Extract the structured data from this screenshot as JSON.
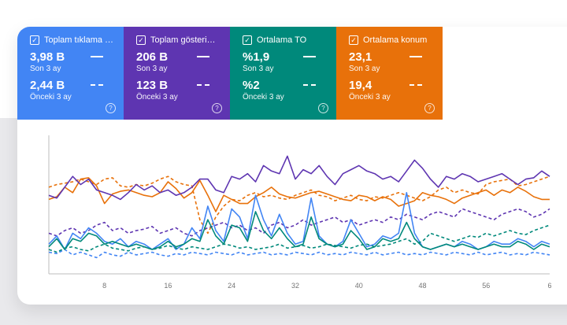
{
  "metrics": [
    {
      "title": "Toplam tıklama s...",
      "current_value": "3,98 B",
      "current_label": "Son 3 ay",
      "previous_value": "2,44 B",
      "previous_label": "Önceki 3 ay",
      "color": "#4285f4"
    },
    {
      "title": "Toplam gösterim ...",
      "current_value": "206 B",
      "current_label": "Son 3 ay",
      "previous_value": "123 B",
      "previous_label": "Önceki 3 ay",
      "color": "#5e35b1"
    },
    {
      "title": "Ortalama TO",
      "current_value": "%1,9",
      "current_label": "Son 3 ay",
      "previous_value": "%2",
      "previous_label": "Önceki 3 ay",
      "color": "#00897b"
    },
    {
      "title": "Ortalama konum",
      "current_value": "23,1",
      "current_label": "Son 3 ay",
      "previous_value": "19,4",
      "previous_label": "Önceki 3 ay",
      "color": "#e8710a"
    }
  ],
  "icons": {
    "check": "checkbox-checked-icon",
    "help": "help-circle-icon",
    "help_glyph": "?",
    "check_glyph": "✓"
  },
  "chart_data": {
    "type": "line",
    "x_ticks": [
      "8",
      "16",
      "24",
      "32",
      "40",
      "48",
      "56",
      "6"
    ],
    "xlim": [
      1,
      64
    ],
    "ylim": [
      0,
      100
    ],
    "grid": false,
    "series": [
      {
        "metric": "Ortalama konum",
        "period": "current",
        "dashed": false,
        "color": "#e8710a",
        "values": [
          55,
          57,
          64,
          60,
          70,
          71,
          65,
          52,
          59,
          61,
          62,
          60,
          58,
          57,
          60,
          68,
          63,
          56,
          60,
          69,
          58,
          46,
          58,
          55,
          52,
          52,
          57,
          60,
          64,
          59,
          57,
          56,
          58,
          60,
          61,
          59,
          57,
          55,
          54,
          58,
          57,
          54,
          57,
          55,
          50,
          52,
          54,
          60,
          58,
          57,
          55,
          52,
          56,
          58,
          60,
          62,
          58,
          62,
          60,
          64,
          61,
          57,
          55,
          55
        ]
      },
      {
        "metric": "Ortalama konum",
        "period": "previous",
        "dashed": true,
        "color": "#e8710a",
        "values": [
          64,
          66,
          67,
          68,
          70,
          68,
          66,
          70,
          71,
          65,
          64,
          66,
          65,
          67,
          70,
          72,
          68,
          66,
          65,
          40,
          30,
          42,
          50,
          55,
          54,
          58,
          60,
          57,
          58,
          56,
          55,
          58,
          60,
          62,
          58,
          57,
          54,
          56,
          58,
          55,
          54,
          57,
          56,
          58,
          60,
          58,
          56,
          54,
          57,
          62,
          64,
          60,
          62,
          60,
          59,
          66,
          68,
          69,
          70,
          65,
          66,
          68,
          70,
          72
        ]
      },
      {
        "metric": "Toplam gösterim",
        "period": "current",
        "dashed": false,
        "color": "#5e35b1",
        "values": [
          58,
          56,
          64,
          72,
          66,
          70,
          62,
          60,
          58,
          55,
          60,
          66,
          62,
          65,
          60,
          62,
          58,
          60,
          64,
          70,
          70,
          62,
          60,
          72,
          70,
          74,
          68,
          80,
          76,
          74,
          87,
          70,
          77,
          74,
          80,
          72,
          66,
          74,
          77,
          80,
          76,
          74,
          70,
          72,
          68,
          76,
          84,
          78,
          70,
          64,
          72,
          70,
          74,
          72,
          68,
          70,
          72,
          74,
          70,
          66,
          70,
          71,
          76,
          72
        ]
      },
      {
        "metric": "Toplam gösterim",
        "period": "previous",
        "dashed": true,
        "color": "#5e35b1",
        "values": [
          30,
          28,
          32,
          34,
          30,
          32,
          36,
          38,
          32,
          34,
          30,
          32,
          33,
          35,
          30,
          32,
          34,
          30,
          28,
          32,
          34,
          36,
          38,
          34,
          36,
          32,
          34,
          30,
          36,
          38,
          34,
          36,
          40,
          36,
          38,
          40,
          42,
          38,
          40,
          36,
          38,
          40,
          38,
          42,
          40,
          44,
          42,
          40,
          44,
          46,
          44,
          42,
          48,
          46,
          44,
          42,
          40,
          44,
          46,
          48,
          46,
          42,
          44,
          48
        ]
      },
      {
        "metric": "Toplam tıklama",
        "period": "current",
        "dashed": false,
        "color": "#4285f4",
        "values": [
          22,
          28,
          18,
          30,
          26,
          34,
          30,
          24,
          22,
          26,
          20,
          24,
          22,
          18,
          22,
          26,
          18,
          22,
          34,
          26,
          50,
          32,
          24,
          48,
          42,
          26,
          58,
          40,
          28,
          44,
          30,
          22,
          24,
          56,
          28,
          22,
          20,
          24,
          40,
          30,
          20,
          22,
          28,
          26,
          30,
          60,
          30,
          20,
          18,
          20,
          22,
          20,
          24,
          22,
          18,
          20,
          24,
          22,
          22,
          26,
          24,
          20,
          24,
          22
        ]
      },
      {
        "metric": "Toplam tıklama",
        "period": "previous",
        "dashed": true,
        "color": "#4285f4",
        "values": [
          16,
          15,
          18,
          14,
          16,
          14,
          12,
          16,
          14,
          13,
          16,
          14,
          15,
          16,
          14,
          13,
          15,
          14,
          16,
          15,
          14,
          16,
          15,
          14,
          16,
          14,
          15,
          16,
          14,
          15,
          14,
          16,
          15,
          14,
          16,
          14,
          15,
          14,
          16,
          15,
          14,
          16,
          14,
          15,
          16,
          14,
          15,
          14,
          16,
          15,
          14,
          16,
          15,
          14,
          16,
          14,
          15,
          16,
          14,
          15,
          14,
          16,
          15,
          14
        ]
      },
      {
        "metric": "Ortalama TO",
        "period": "current",
        "dashed": false,
        "color": "#00897b",
        "values": [
          20,
          26,
          18,
          26,
          24,
          30,
          28,
          22,
          24,
          22,
          20,
          22,
          20,
          18,
          20,
          24,
          20,
          22,
          26,
          24,
          40,
          28,
          22,
          36,
          34,
          24,
          46,
          32,
          26,
          34,
          26,
          20,
          22,
          42,
          26,
          22,
          20,
          22,
          32,
          26,
          18,
          20,
          26,
          24,
          26,
          38,
          26,
          20,
          18,
          20,
          22,
          20,
          22,
          20,
          18,
          20,
          22,
          20,
          20,
          24,
          22,
          18,
          22,
          20
        ]
      },
      {
        "metric": "Ortalama TO",
        "period": "previous",
        "dashed": true,
        "color": "#00897b",
        "values": [
          18,
          16,
          19,
          20,
          18,
          17,
          20,
          22,
          19,
          18,
          17,
          19,
          20,
          18,
          19,
          21,
          19,
          18,
          20,
          19,
          18,
          20,
          22,
          21,
          19,
          20,
          18,
          19,
          20,
          22,
          19,
          20,
          21,
          19,
          20,
          22,
          21,
          20,
          19,
          21,
          22,
          20,
          21,
          22,
          24,
          26,
          22,
          24,
          30,
          28,
          26,
          24,
          26,
          28,
          27,
          30,
          28,
          30,
          32,
          30,
          29,
          32,
          34,
          36
        ]
      }
    ]
  }
}
